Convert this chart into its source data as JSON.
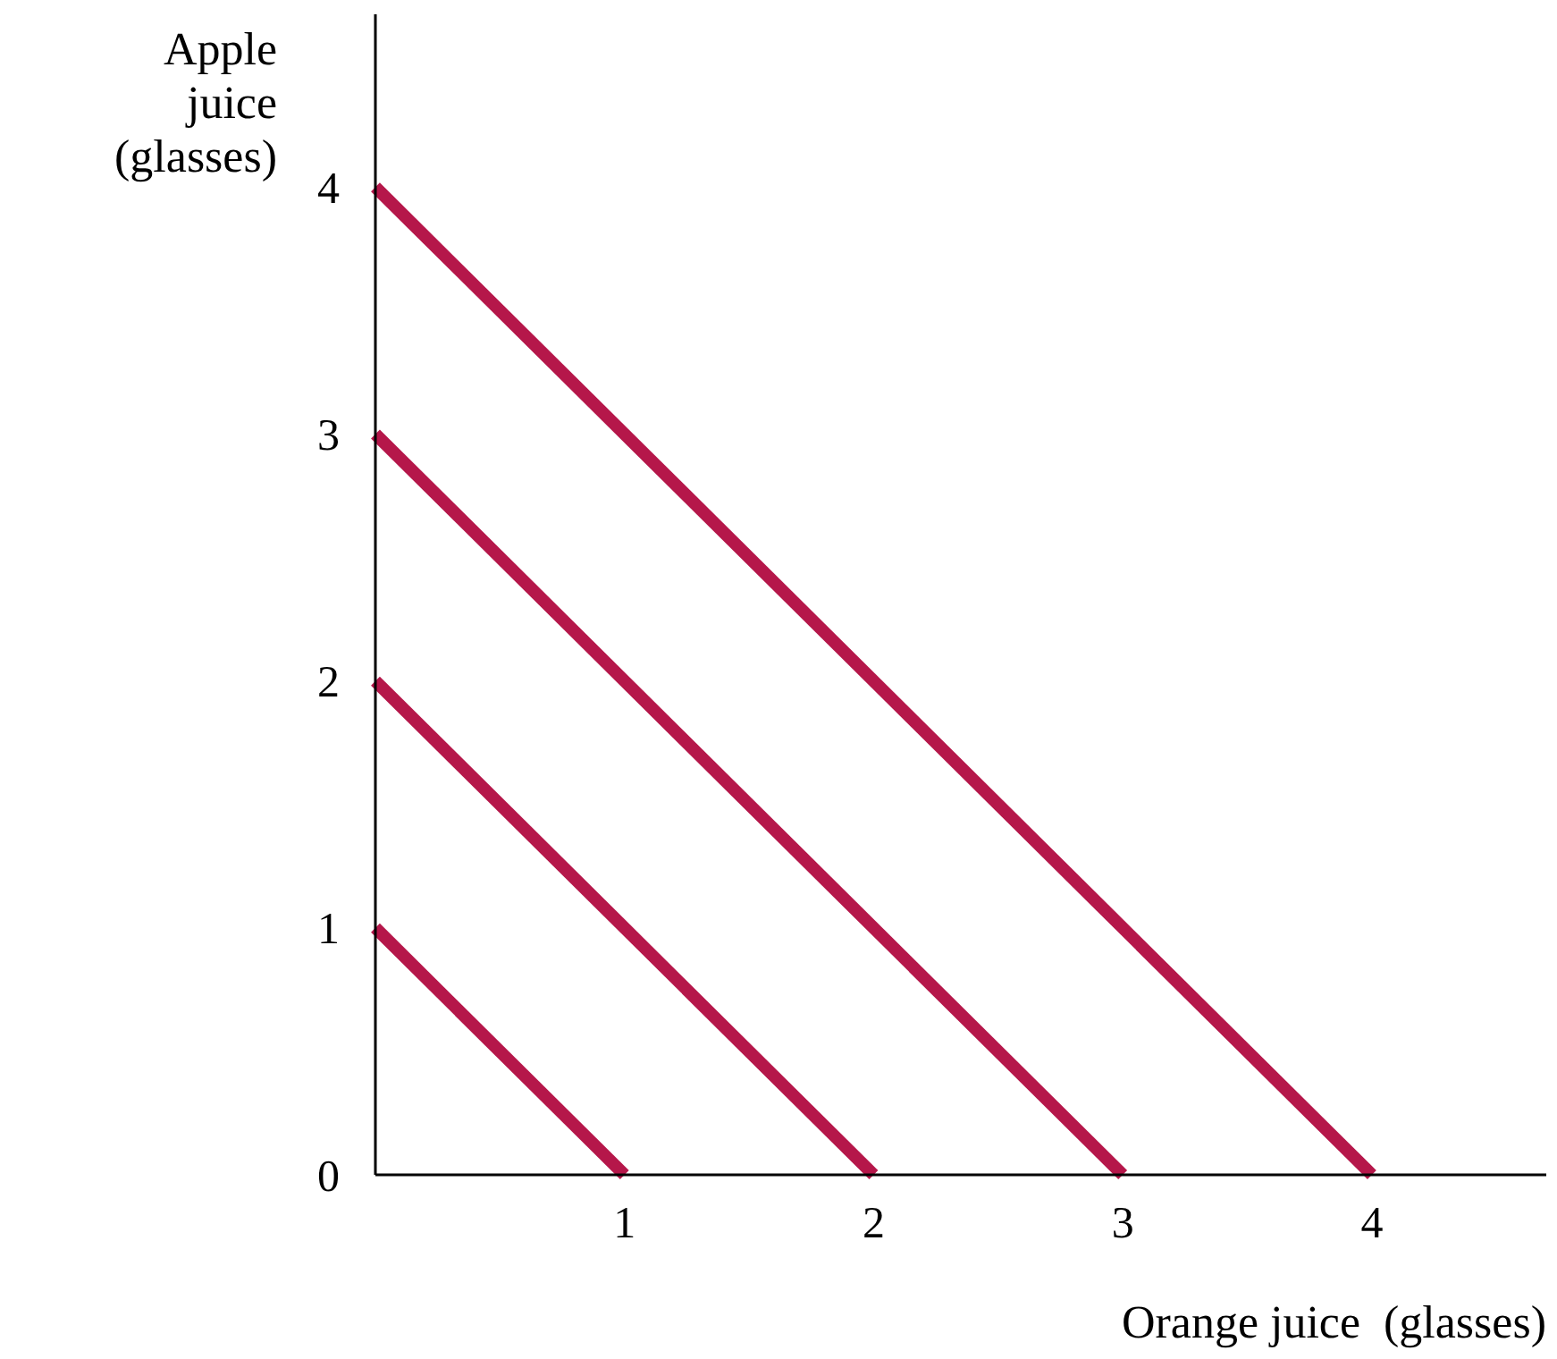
{
  "chart_data": {
    "type": "line",
    "xlabel": "Orange juice  (glasses)",
    "ylabel": "Apple juice (glasses)",
    "xlim": [
      0,
      4.7
    ],
    "ylim": [
      0,
      4.7
    ],
    "xticks": [
      1,
      2,
      3,
      4
    ],
    "yticks": [
      0,
      1,
      2,
      3,
      4
    ],
    "grid": false,
    "marker": "none",
    "line_style": "solid",
    "series": [
      {
        "color": "#b5174a",
        "x": [
          0,
          1
        ],
        "values": [
          1,
          0
        ]
      },
      {
        "color": "#b5174a",
        "x": [
          0,
          2
        ],
        "values": [
          2,
          0
        ]
      },
      {
        "color": "#b5174a",
        "x": [
          0,
          3
        ],
        "values": [
          3,
          0
        ]
      },
      {
        "color": "#b5174a",
        "x": [
          0,
          4
        ],
        "values": [
          4,
          0
        ]
      }
    ]
  }
}
